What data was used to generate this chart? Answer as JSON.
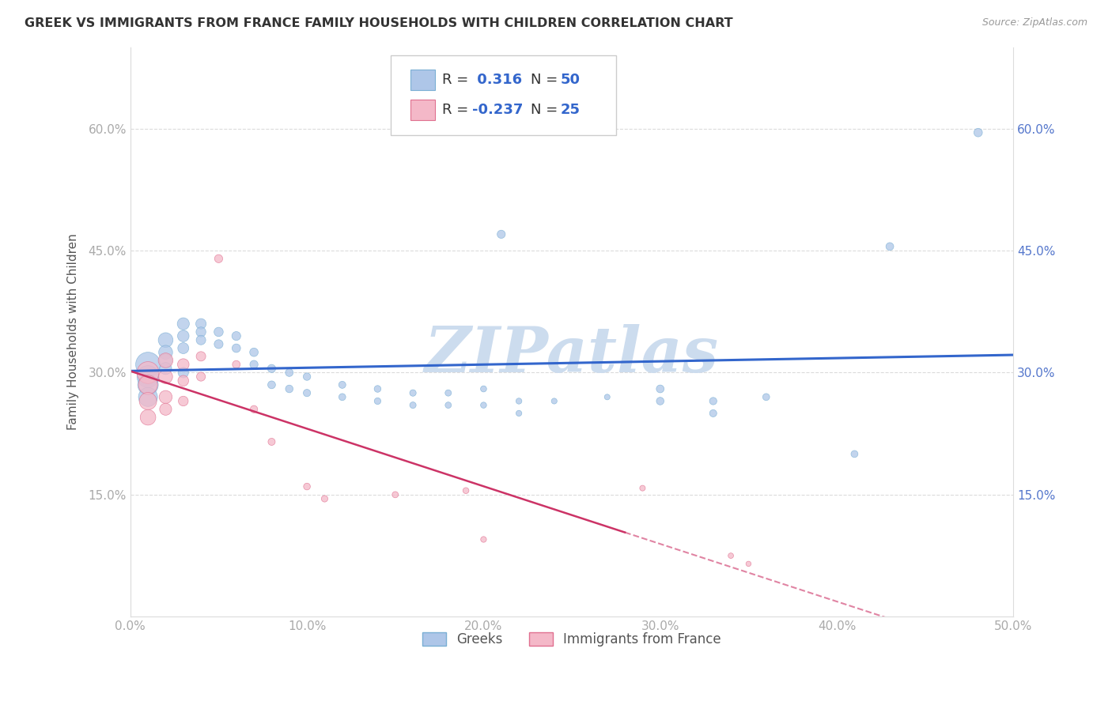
{
  "title": "GREEK VS IMMIGRANTS FROM FRANCE FAMILY HOUSEHOLDS WITH CHILDREN CORRELATION CHART",
  "source": "Source: ZipAtlas.com",
  "ylabel": "Family Households with Children",
  "series": [
    {
      "name": "Greeks",
      "color": "#aec6e8",
      "border_color": "#7aafd4",
      "line_color": "#3366cc",
      "R": 0.316,
      "N": 50,
      "trend_solid": true,
      "points": [
        [
          0.01,
          0.31
        ],
        [
          0.01,
          0.295
        ],
        [
          0.01,
          0.285
        ],
        [
          0.01,
          0.27
        ],
        [
          0.02,
          0.34
        ],
        [
          0.02,
          0.325
        ],
        [
          0.02,
          0.315
        ],
        [
          0.02,
          0.305
        ],
        [
          0.03,
          0.36
        ],
        [
          0.03,
          0.345
        ],
        [
          0.03,
          0.33
        ],
        [
          0.03,
          0.3
        ],
        [
          0.04,
          0.36
        ],
        [
          0.04,
          0.35
        ],
        [
          0.04,
          0.34
        ],
        [
          0.05,
          0.35
        ],
        [
          0.05,
          0.335
        ],
        [
          0.06,
          0.345
        ],
        [
          0.06,
          0.33
        ],
        [
          0.07,
          0.325
        ],
        [
          0.07,
          0.31
        ],
        [
          0.08,
          0.305
        ],
        [
          0.08,
          0.285
        ],
        [
          0.09,
          0.3
        ],
        [
          0.09,
          0.28
        ],
        [
          0.1,
          0.295
        ],
        [
          0.1,
          0.275
        ],
        [
          0.12,
          0.285
        ],
        [
          0.12,
          0.27
        ],
        [
          0.14,
          0.28
        ],
        [
          0.14,
          0.265
        ],
        [
          0.16,
          0.275
        ],
        [
          0.16,
          0.26
        ],
        [
          0.18,
          0.275
        ],
        [
          0.18,
          0.26
        ],
        [
          0.2,
          0.28
        ],
        [
          0.2,
          0.26
        ],
        [
          0.22,
          0.265
        ],
        [
          0.22,
          0.25
        ],
        [
          0.24,
          0.265
        ],
        [
          0.27,
          0.27
        ],
        [
          0.3,
          0.28
        ],
        [
          0.3,
          0.265
        ],
        [
          0.33,
          0.265
        ],
        [
          0.33,
          0.25
        ],
        [
          0.36,
          0.27
        ],
        [
          0.21,
          0.47
        ],
        [
          0.41,
          0.2
        ],
        [
          0.43,
          0.455
        ],
        [
          0.48,
          0.595
        ]
      ],
      "sizes": [
        500,
        400,
        350,
        300,
        180,
        160,
        140,
        120,
        120,
        110,
        100,
        90,
        90,
        80,
        75,
        70,
        65,
        65,
        60,
        60,
        55,
        55,
        50,
        50,
        48,
        46,
        44,
        42,
        40,
        38,
        36,
        35,
        34,
        33,
        32,
        31,
        30,
        29,
        28,
        27,
        26,
        50,
        48,
        45,
        43,
        40,
        55,
        40,
        50,
        60
      ]
    },
    {
      "name": "Immigrants from France",
      "color": "#f4b8c8",
      "border_color": "#e07090",
      "line_color": "#cc3366",
      "R": -0.237,
      "N": 25,
      "trend_solid": false,
      "points": [
        [
          0.01,
          0.3
        ],
        [
          0.01,
          0.285
        ],
        [
          0.01,
          0.265
        ],
        [
          0.01,
          0.245
        ],
        [
          0.02,
          0.315
        ],
        [
          0.02,
          0.295
        ],
        [
          0.02,
          0.27
        ],
        [
          0.02,
          0.255
        ],
        [
          0.03,
          0.31
        ],
        [
          0.03,
          0.29
        ],
        [
          0.03,
          0.265
        ],
        [
          0.04,
          0.32
        ],
        [
          0.04,
          0.295
        ],
        [
          0.05,
          0.44
        ],
        [
          0.06,
          0.31
        ],
        [
          0.07,
          0.255
        ],
        [
          0.08,
          0.215
        ],
        [
          0.1,
          0.16
        ],
        [
          0.11,
          0.145
        ],
        [
          0.15,
          0.15
        ],
        [
          0.19,
          0.155
        ],
        [
          0.2,
          0.095
        ],
        [
          0.29,
          0.158
        ],
        [
          0.34,
          0.075
        ],
        [
          0.35,
          0.065
        ]
      ],
      "sizes": [
        400,
        300,
        250,
        200,
        180,
        160,
        140,
        120,
        110,
        95,
        80,
        75,
        65,
        55,
        50,
        45,
        42,
        38,
        35,
        32,
        30,
        28,
        26,
        24,
        22
      ]
    }
  ],
  "xlim": [
    0.0,
    0.5
  ],
  "ylim": [
    0.0,
    0.7
  ],
  "yticks": [
    0.15,
    0.3,
    0.45,
    0.6
  ],
  "xticks": [
    0.0,
    0.1,
    0.2,
    0.3,
    0.4,
    0.5
  ],
  "watermark": "ZIPatlas",
  "watermark_color": "#ccdcee",
  "grid_color": "#cccccc",
  "background_color": "#ffffff",
  "title_fontsize": 11.5,
  "axis_label_fontsize": 11,
  "tick_fontsize": 11,
  "legend_text_color": "#3366cc",
  "right_tick_color": "#5577cc"
}
